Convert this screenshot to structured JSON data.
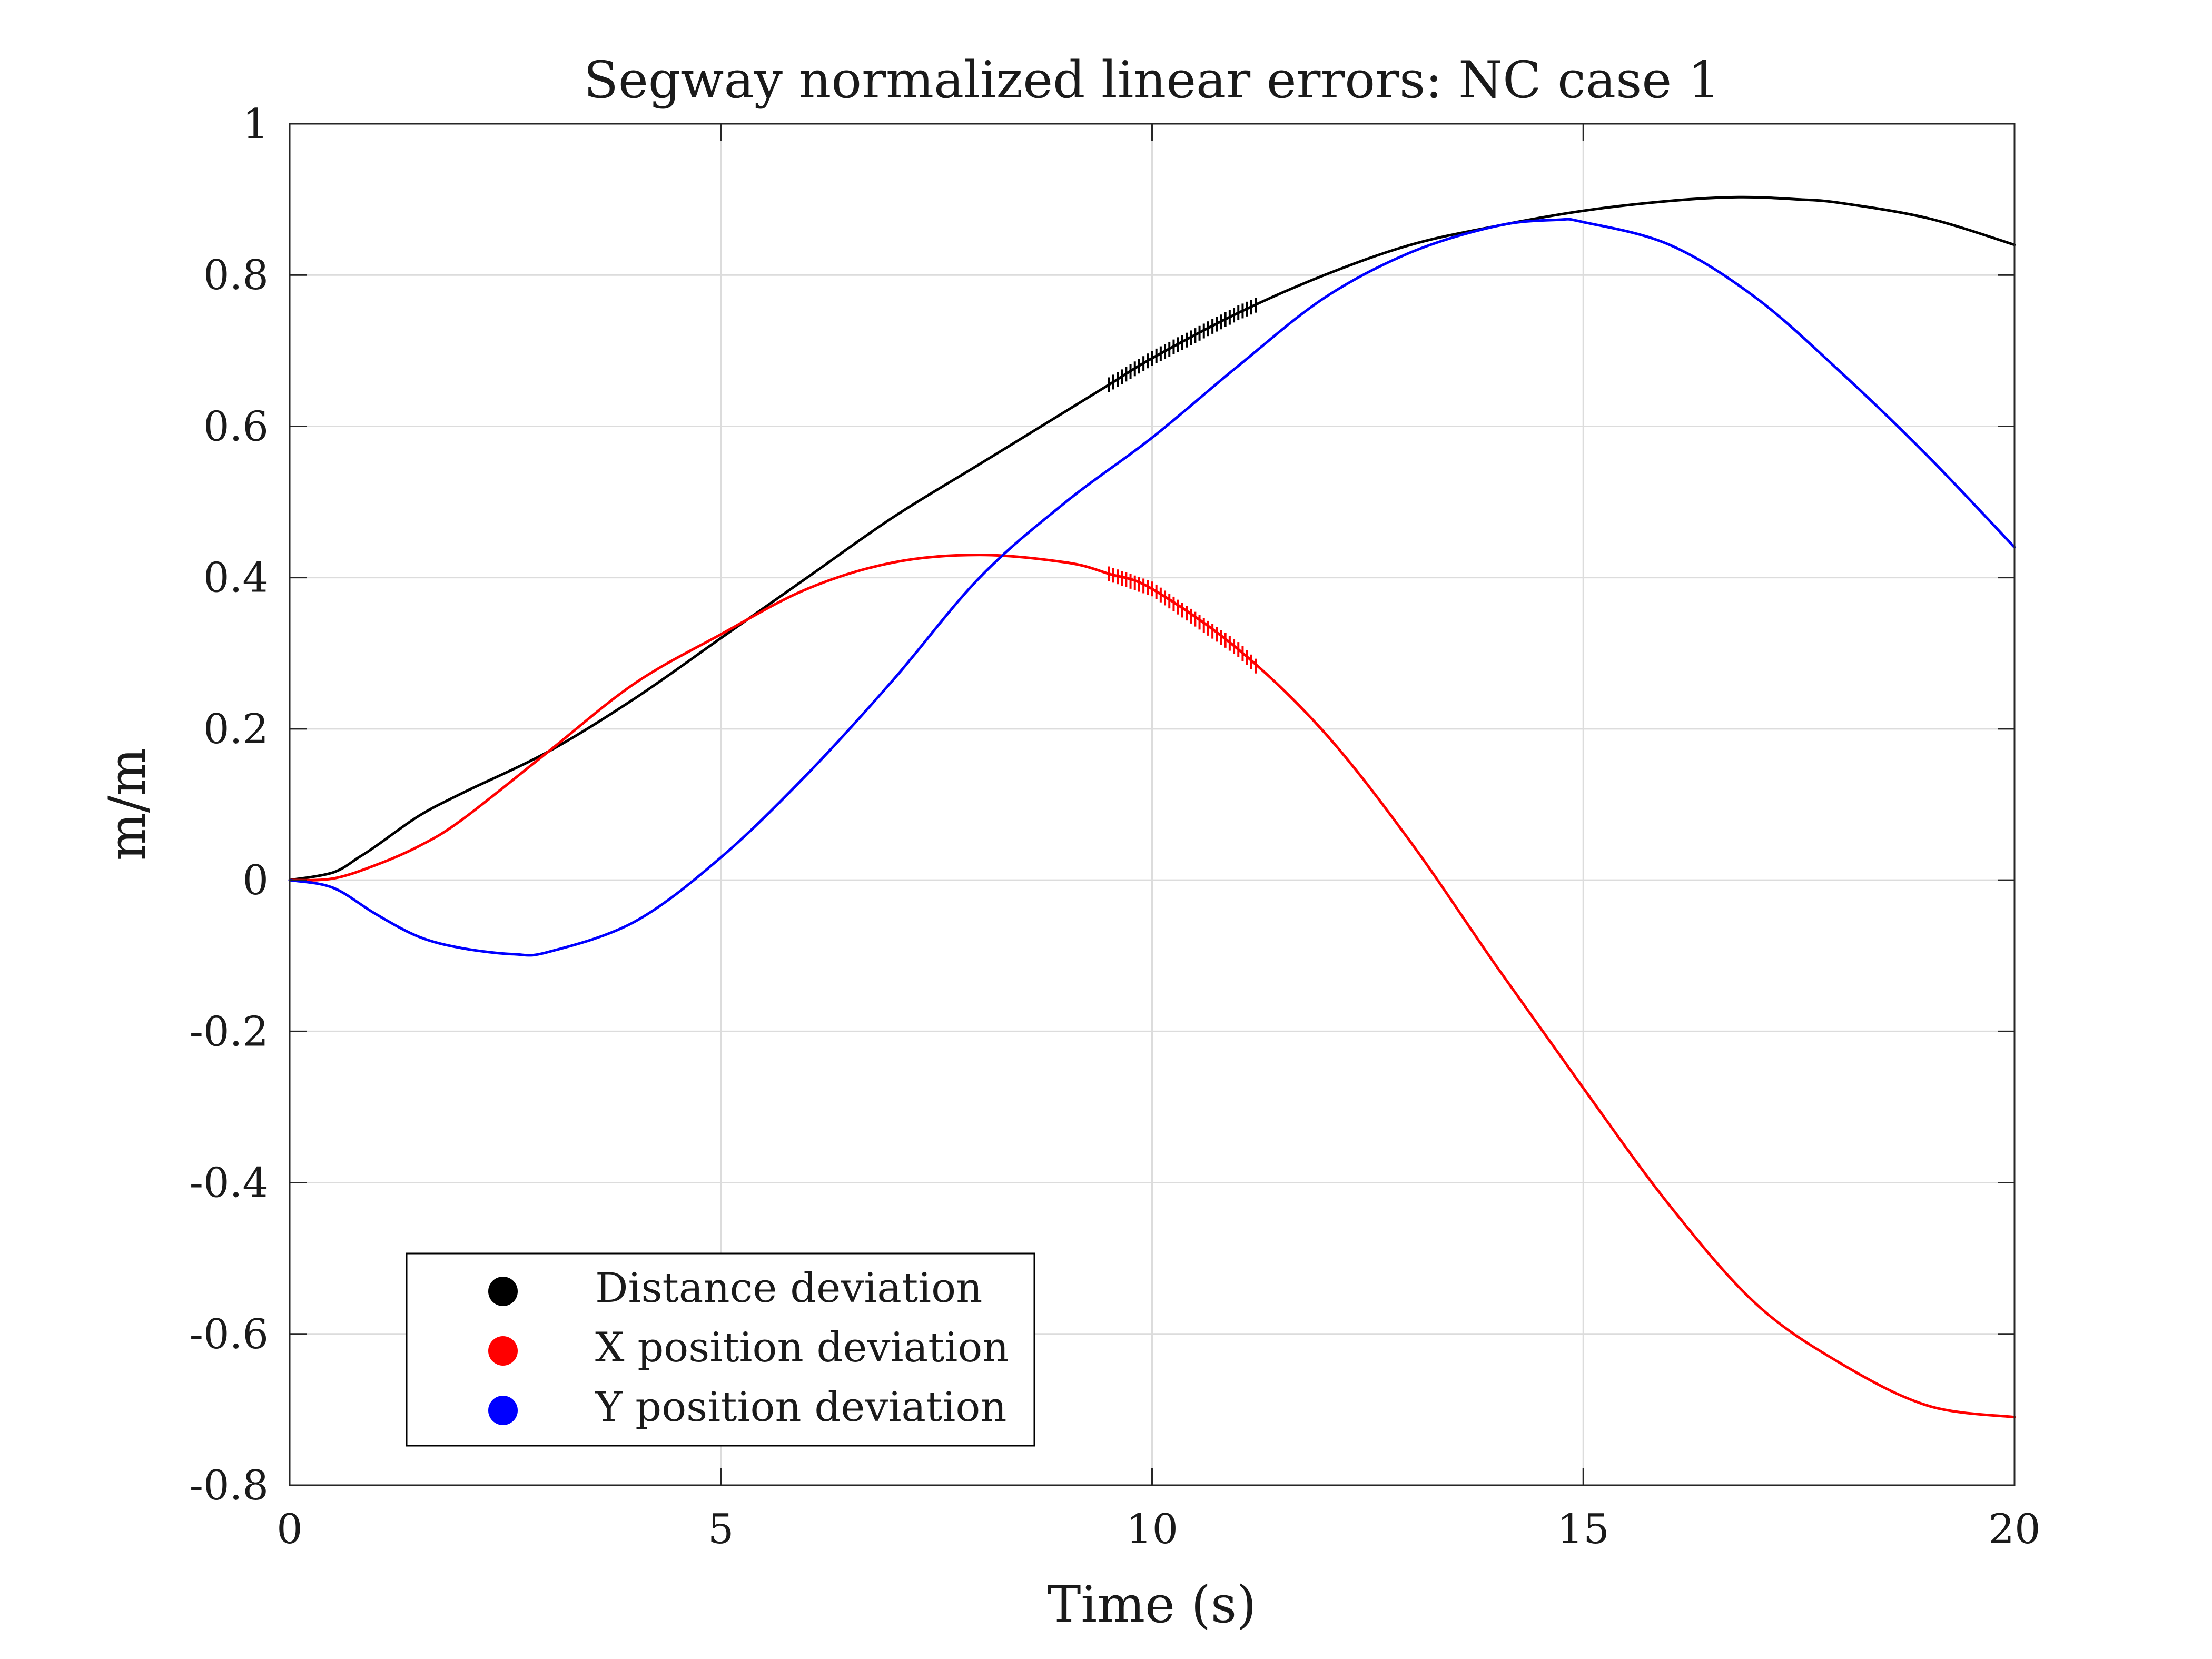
{
  "chart_data": {
    "type": "line",
    "title": "Segway normalized linear errors: NC case 1",
    "xlabel": "Time (s)",
    "ylabel": "m/m",
    "xlim": [
      0,
      20
    ],
    "ylim": [
      -0.8,
      1
    ],
    "xticks": [
      0,
      5,
      10,
      15,
      20
    ],
    "xtick_labels": [
      "0",
      "5",
      "10",
      "15",
      "20"
    ],
    "yticks": [
      -0.8,
      -0.6,
      -0.4,
      -0.2,
      0,
      0.2,
      0.4,
      0.6,
      0.8,
      1
    ],
    "ytick_labels": [
      "-0.8",
      "-0.6",
      "-0.4",
      "-0.2",
      "0",
      "0.2",
      "0.4",
      "0.6",
      "0.8",
      "1"
    ],
    "grid": true,
    "legend_position": "bottom-left",
    "series": [
      {
        "name": "Distance deviation",
        "color": "#000000",
        "x": [
          0,
          0.5,
          0.8,
          1,
          1.5,
          2,
          3,
          4,
          5,
          6,
          7,
          8,
          9,
          9.5,
          10,
          11,
          12,
          13,
          14,
          15,
          16,
          16.8,
          17.5,
          18,
          19,
          20
        ],
        "y": [
          0,
          0.01,
          0.03,
          0.045,
          0.085,
          0.115,
          0.17,
          0.24,
          0.32,
          0.4,
          0.48,
          0.55,
          0.62,
          0.655,
          0.69,
          0.75,
          0.8,
          0.84,
          0.865,
          0.885,
          0.898,
          0.903,
          0.9,
          0.895,
          0.875,
          0.84
        ],
        "noisy_range": [
          9.5,
          11.2
        ]
      },
      {
        "name": "X position deviation",
        "color": "#ff0000",
        "x": [
          0,
          0.5,
          1,
          1.5,
          2,
          3,
          4,
          5,
          6,
          7,
          8,
          9,
          9.5,
          10,
          11,
          12,
          13,
          14,
          15,
          16,
          17,
          18,
          19,
          20
        ],
        "y": [
          0,
          0.002,
          0.02,
          0.045,
          0.08,
          0.17,
          0.26,
          0.325,
          0.385,
          0.42,
          0.43,
          0.42,
          0.405,
          0.385,
          0.305,
          0.195,
          0.05,
          -0.115,
          -0.275,
          -0.43,
          -0.56,
          -0.64,
          -0.695,
          -0.71
        ],
        "noisy_range": [
          9.5,
          11.2
        ]
      },
      {
        "name": "Y position deviation",
        "color": "#0000ff",
        "x": [
          0,
          0.5,
          1,
          1.5,
          2,
          2.6,
          3,
          4,
          5,
          6,
          7,
          8,
          9,
          10,
          11,
          12,
          13,
          14,
          14.7,
          15,
          16,
          17,
          18,
          19,
          20
        ],
        "y": [
          0,
          -0.01,
          -0.045,
          -0.075,
          -0.09,
          -0.098,
          -0.095,
          -0.055,
          0.03,
          0.14,
          0.265,
          0.4,
          0.5,
          0.585,
          0.68,
          0.77,
          0.83,
          0.865,
          0.873,
          0.87,
          0.84,
          0.77,
          0.67,
          0.56,
          0.44
        ]
      }
    ]
  }
}
